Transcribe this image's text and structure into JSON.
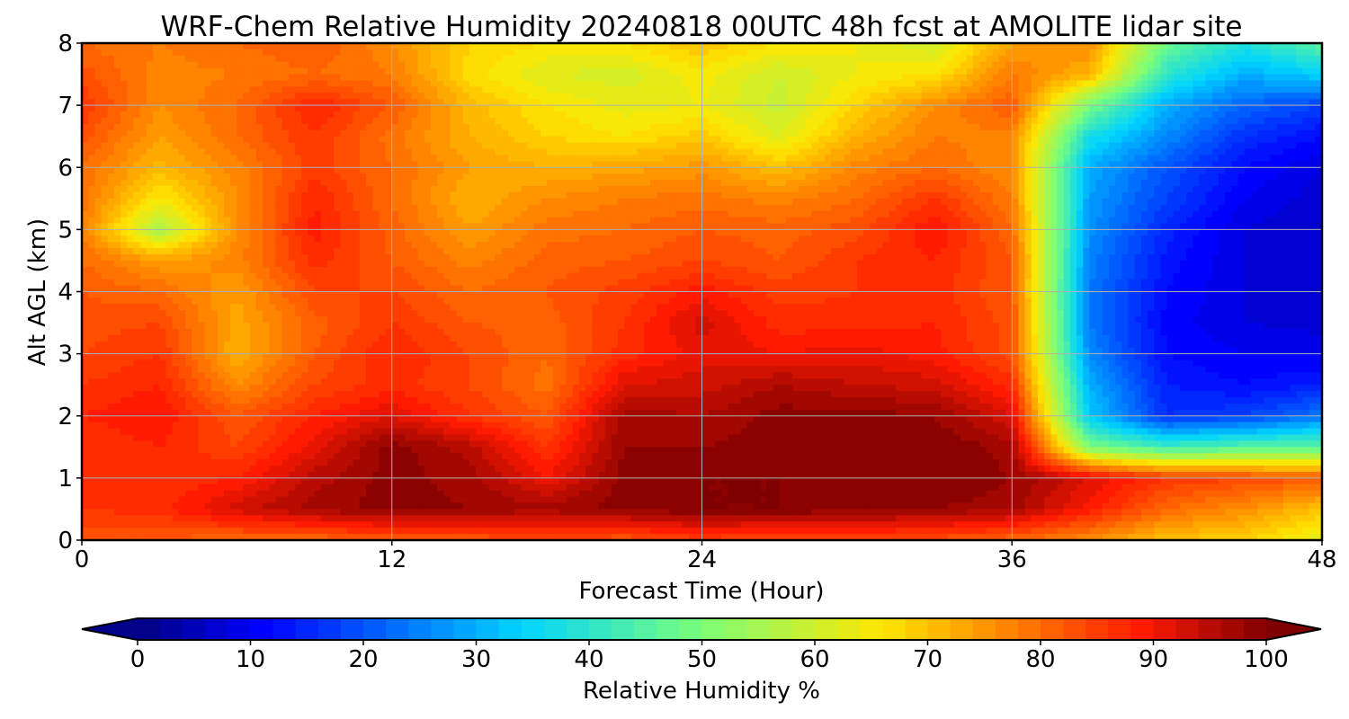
{
  "chart_data": {
    "type": "heatmap",
    "title": "WRF-Chem Relative Humidity 20240818 00UTC 48h fcst at AMOLITE lidar site",
    "xlabel": "Forecast Time (Hour)",
    "ylabel": "Alt AGL (km)",
    "xlim": [
      0,
      48
    ],
    "ylim": [
      0,
      8
    ],
    "xticks": [
      "0",
      "12",
      "24",
      "36",
      "48"
    ],
    "yticks": [
      "0",
      "1",
      "2",
      "3",
      "4",
      "5",
      "6",
      "7",
      "8"
    ],
    "grid": true,
    "colorbar": {
      "label": "Relative Humidity %",
      "range": [
        0,
        100
      ],
      "ticks": [
        "0",
        "10",
        "20",
        "30",
        "40",
        "50",
        "60",
        "70",
        "80",
        "90",
        "100"
      ],
      "colormap": "jet",
      "extend": "both",
      "levels": 50,
      "stops": [
        {
          "value": 0,
          "color": "#00007f"
        },
        {
          "value": 11,
          "color": "#0000ff"
        },
        {
          "value": 34,
          "color": "#00d4ff"
        },
        {
          "value": 50,
          "color": "#7cff79"
        },
        {
          "value": 66,
          "color": "#ffe600"
        },
        {
          "value": 89,
          "color": "#ff1a00"
        },
        {
          "value": 100,
          "color": "#7f0000"
        }
      ]
    },
    "x": [
      0,
      3,
      6,
      9,
      12,
      15,
      18,
      21,
      24,
      27,
      30,
      33,
      36,
      39,
      42,
      45,
      48
    ],
    "y": [
      0,
      0.5,
      1,
      1.5,
      2,
      2.5,
      3,
      3.5,
      4,
      4.5,
      5,
      5.5,
      6,
      6.5,
      7,
      7.5,
      8
    ],
    "z": [
      [
        82,
        82,
        80,
        80,
        82,
        82,
        84,
        82,
        85,
        83,
        84,
        83,
        80,
        76,
        70,
        68,
        62
      ],
      [
        86,
        87,
        93,
        97,
        99,
        98,
        97,
        99,
        100,
        100,
        99,
        98,
        97,
        89,
        80,
        76,
        70
      ],
      [
        87,
        86,
        88,
        95,
        99,
        97,
        90,
        99,
        100,
        100,
        99,
        100,
        98,
        92,
        86,
        84,
        82
      ],
      [
        86,
        88,
        84,
        91,
        99,
        95,
        86,
        98,
        98,
        99,
        100,
        100,
        97,
        50,
        42,
        45,
        46
      ],
      [
        88,
        90,
        82,
        88,
        92,
        86,
        82,
        97,
        96,
        99,
        99,
        98,
        92,
        33,
        16,
        18,
        24
      ],
      [
        86,
        88,
        76,
        84,
        87,
        84,
        79,
        92,
        93,
        96,
        94,
        93,
        87,
        30,
        14,
        12,
        14
      ],
      [
        84,
        86,
        72,
        82,
        88,
        84,
        80,
        87,
        91,
        90,
        91,
        89,
        83,
        26,
        12,
        10,
        10
      ],
      [
        83,
        84,
        73,
        81,
        86,
        82,
        81,
        86,
        93,
        87,
        87,
        88,
        83,
        24,
        11,
        8,
        7
      ],
      [
        82,
        80,
        74,
        84,
        84,
        80,
        82,
        85,
        89,
        85,
        86,
        87,
        82,
        24,
        12,
        8,
        6
      ],
      [
        80,
        74,
        77,
        87,
        82,
        77,
        81,
        82,
        84,
        82,
        86,
        88,
        82,
        25,
        13,
        8,
        6
      ],
      [
        78,
        55,
        76,
        89,
        81,
        74,
        79,
        80,
        82,
        81,
        83,
        90,
        80,
        27,
        15,
        8,
        6
      ],
      [
        79,
        65,
        76,
        88,
        80,
        72,
        76,
        78,
        79,
        77,
        80,
        86,
        78,
        28,
        18,
        10,
        7
      ],
      [
        80,
        71,
        77,
        85,
        80,
        74,
        72,
        73,
        75,
        70,
        77,
        80,
        76,
        30,
        20,
        12,
        8
      ],
      [
        83,
        74,
        80,
        86,
        79,
        72,
        68,
        66,
        69,
        62,
        72,
        78,
        77,
        37,
        26,
        16,
        12
      ],
      [
        86,
        76,
        80,
        88,
        82,
        71,
        66,
        63,
        64,
        59,
        68,
        76,
        82,
        50,
        30,
        22,
        18
      ],
      [
        83,
        77,
        78,
        80,
        78,
        67,
        62,
        61,
        65,
        60,
        64,
        66,
        78,
        72,
        40,
        30,
        34
      ],
      [
        80,
        78,
        80,
        82,
        76,
        68,
        66,
        66,
        70,
        66,
        64,
        60,
        74,
        76,
        48,
        38,
        46
      ]
    ]
  }
}
